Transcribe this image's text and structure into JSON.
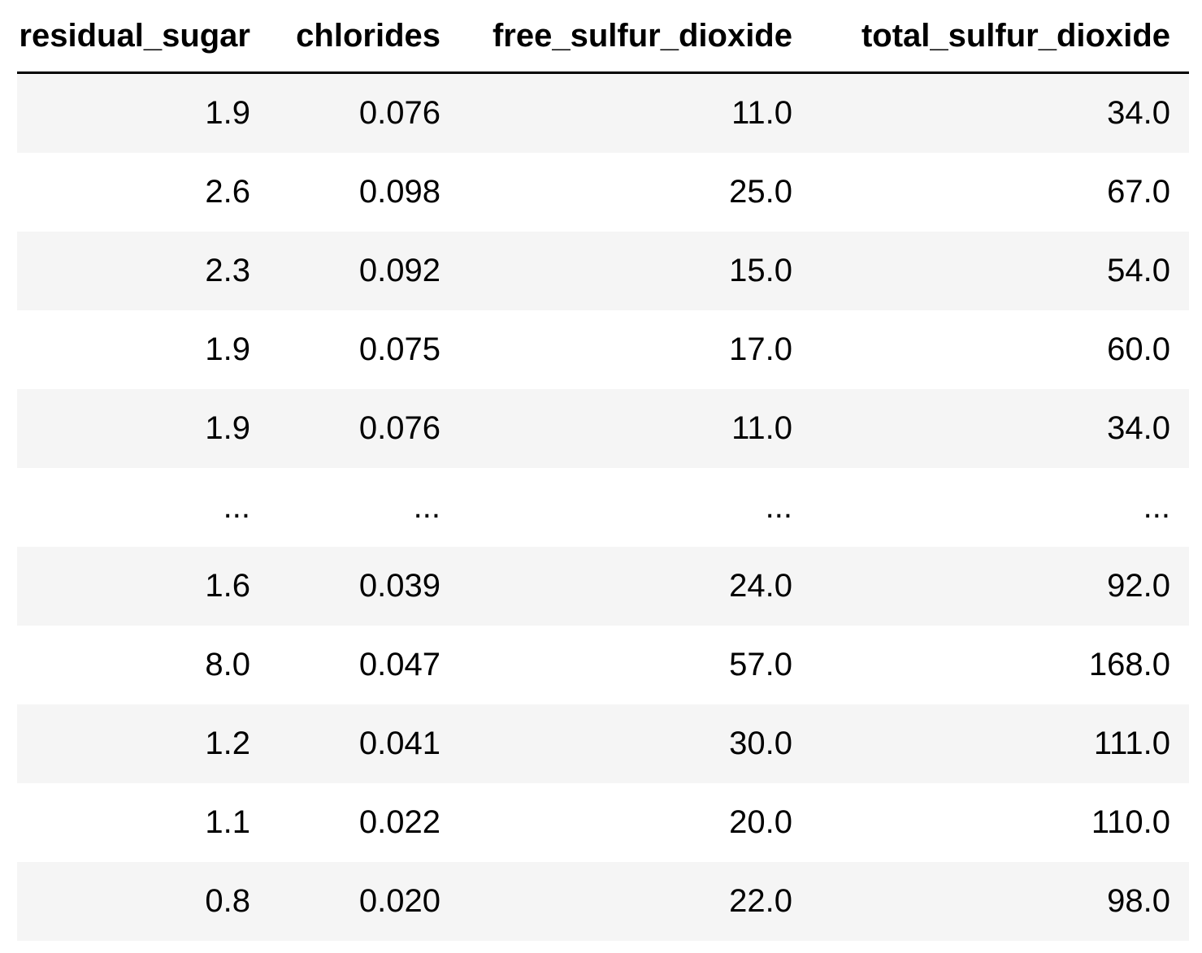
{
  "table": {
    "columns": [
      "residual_sugar",
      "chlorides",
      "free_sulfur_dioxide",
      "total_sulfur_dioxide"
    ],
    "rows": [
      [
        "1.9",
        "0.076",
        "11.0",
        "34.0"
      ],
      [
        "2.6",
        "0.098",
        "25.0",
        "67.0"
      ],
      [
        "2.3",
        "0.092",
        "15.0",
        "54.0"
      ],
      [
        "1.9",
        "0.075",
        "17.0",
        "60.0"
      ],
      [
        "1.9",
        "0.076",
        "11.0",
        "34.0"
      ],
      [
        "...",
        "...",
        "...",
        "..."
      ],
      [
        "1.6",
        "0.039",
        "24.0",
        "92.0"
      ],
      [
        "8.0",
        "0.047",
        "57.0",
        "168.0"
      ],
      [
        "1.2",
        "0.041",
        "30.0",
        "111.0"
      ],
      [
        "1.1",
        "0.022",
        "20.0",
        "110.0"
      ],
      [
        "0.8",
        "0.020",
        "22.0",
        "98.0"
      ]
    ]
  }
}
